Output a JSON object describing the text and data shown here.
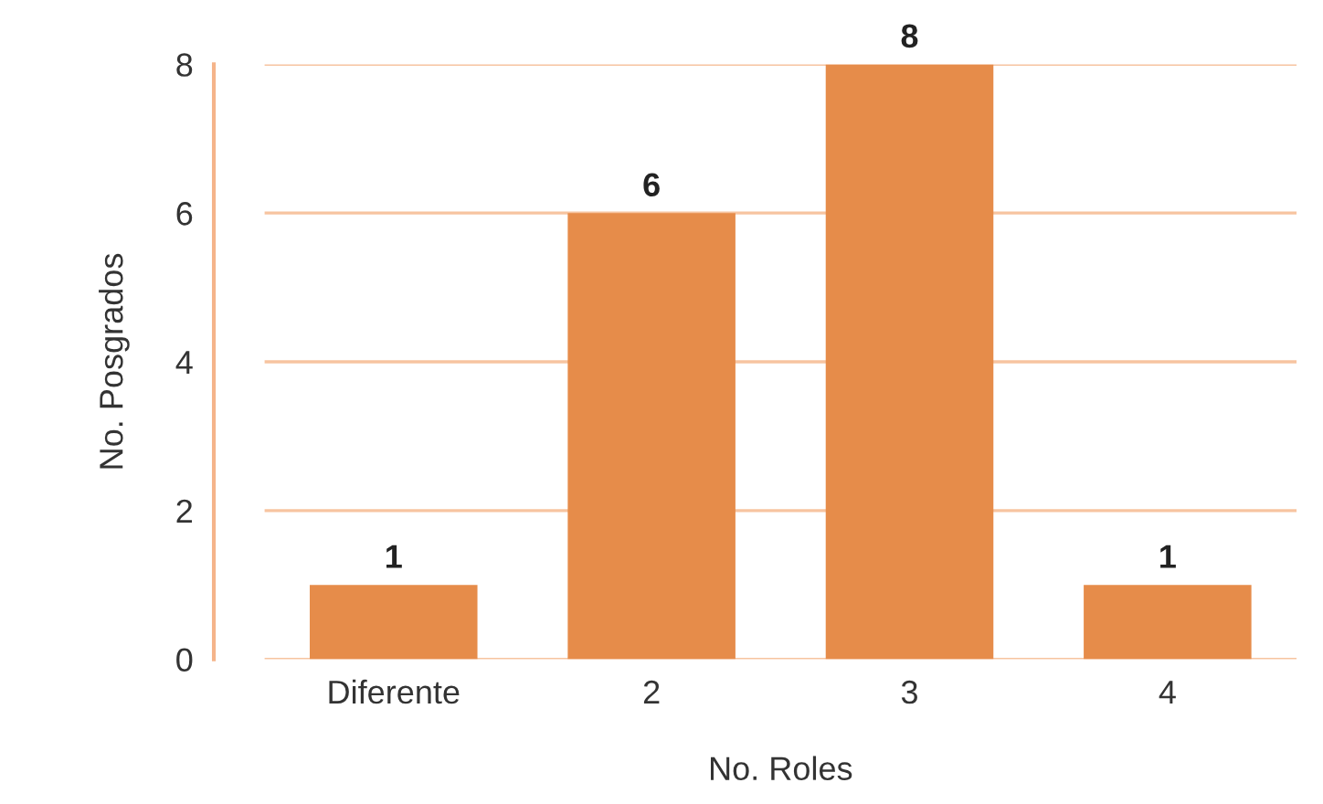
{
  "chart_data": {
    "type": "bar",
    "xlabel": "No. Roles",
    "ylabel": "No. Posgrados",
    "categories": [
      "Diferente",
      "2",
      "3",
      "4"
    ],
    "values": [
      1,
      6,
      8,
      1
    ],
    "color": "#e68c4a",
    "ylim": [
      0,
      8
    ],
    "yticks": [
      0,
      2,
      4,
      6,
      8
    ],
    "grid": "y",
    "data_labels": true
  }
}
